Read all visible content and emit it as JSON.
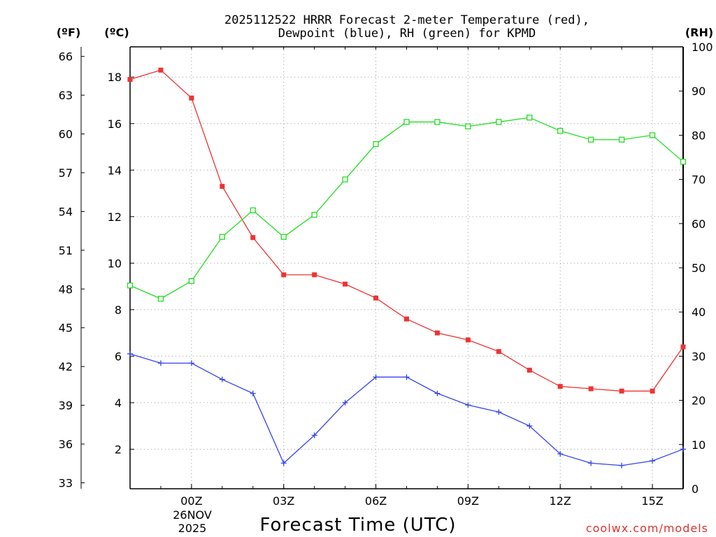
{
  "chart_data": {
    "type": "line",
    "title_line1": "2025112522 HRRR Forecast 2-meter Temperature (red),",
    "title_line2": "Dewpoint (blue), RH (green) for KPMD",
    "xlabel": "Forecast Time (UTC)",
    "unit_f": "(ºF)",
    "unit_c": "(ºC)",
    "unit_rh": "(RH)",
    "credit": "coolwx.com/models",
    "date_line1": "26NOV",
    "date_line2": "2025",
    "x_hours": [
      -2,
      -1,
      0,
      1,
      2,
      3,
      4,
      5,
      6,
      7,
      8,
      9,
      10,
      11,
      12,
      13,
      14,
      15,
      16
    ],
    "xlim": [
      -2,
      16
    ],
    "x_ticks": [
      {
        "hour": 0,
        "label": "00Z"
      },
      {
        "hour": 3,
        "label": "03Z"
      },
      {
        "hour": 6,
        "label": "06Z"
      },
      {
        "hour": 9,
        "label": "09Z"
      },
      {
        "hour": 12,
        "label": "12Z"
      },
      {
        "hour": 15,
        "label": "15Z"
      }
    ],
    "c_range": [
      0.3,
      19.3
    ],
    "c_ticks": [
      "2",
      "4",
      "6",
      "8",
      "10",
      "12",
      "14",
      "16",
      "18"
    ],
    "f_ticks": [
      "33",
      "36",
      "39",
      "42",
      "45",
      "48",
      "51",
      "54",
      "57",
      "60",
      "63",
      "66"
    ],
    "rh_range": [
      0,
      100
    ],
    "rh_ticks": [
      "0",
      "10",
      "20",
      "30",
      "40",
      "50",
      "60",
      "70",
      "80",
      "90",
      "100"
    ],
    "grid": true,
    "series": [
      {
        "name": "Temperature",
        "unit": "C",
        "color": "#ee3333",
        "marker": "filled-square",
        "values": [
          17.9,
          18.3,
          17.1,
          13.3,
          11.1,
          9.5,
          9.5,
          9.1,
          8.5,
          7.6,
          7.0,
          6.7,
          6.2,
          5.4,
          4.7,
          4.6,
          4.5,
          4.5,
          6.4
        ]
      },
      {
        "name": "Dewpoint",
        "unit": "C",
        "color": "#3344ee",
        "marker": "plus",
        "values": [
          6.1,
          5.7,
          5.7,
          5.0,
          4.4,
          1.4,
          2.6,
          4.0,
          5.1,
          5.1,
          4.4,
          3.9,
          3.6,
          3.0,
          1.8,
          1.4,
          1.3,
          1.5,
          2.0
        ]
      },
      {
        "name": "RH",
        "unit": "%",
        "color": "#22dd22",
        "marker": "open-square",
        "values": [
          46,
          43,
          47,
          57,
          63,
          57,
          62,
          70,
          78,
          83,
          83,
          82,
          83,
          84,
          81,
          79,
          79,
          80,
          74
        ]
      }
    ]
  }
}
